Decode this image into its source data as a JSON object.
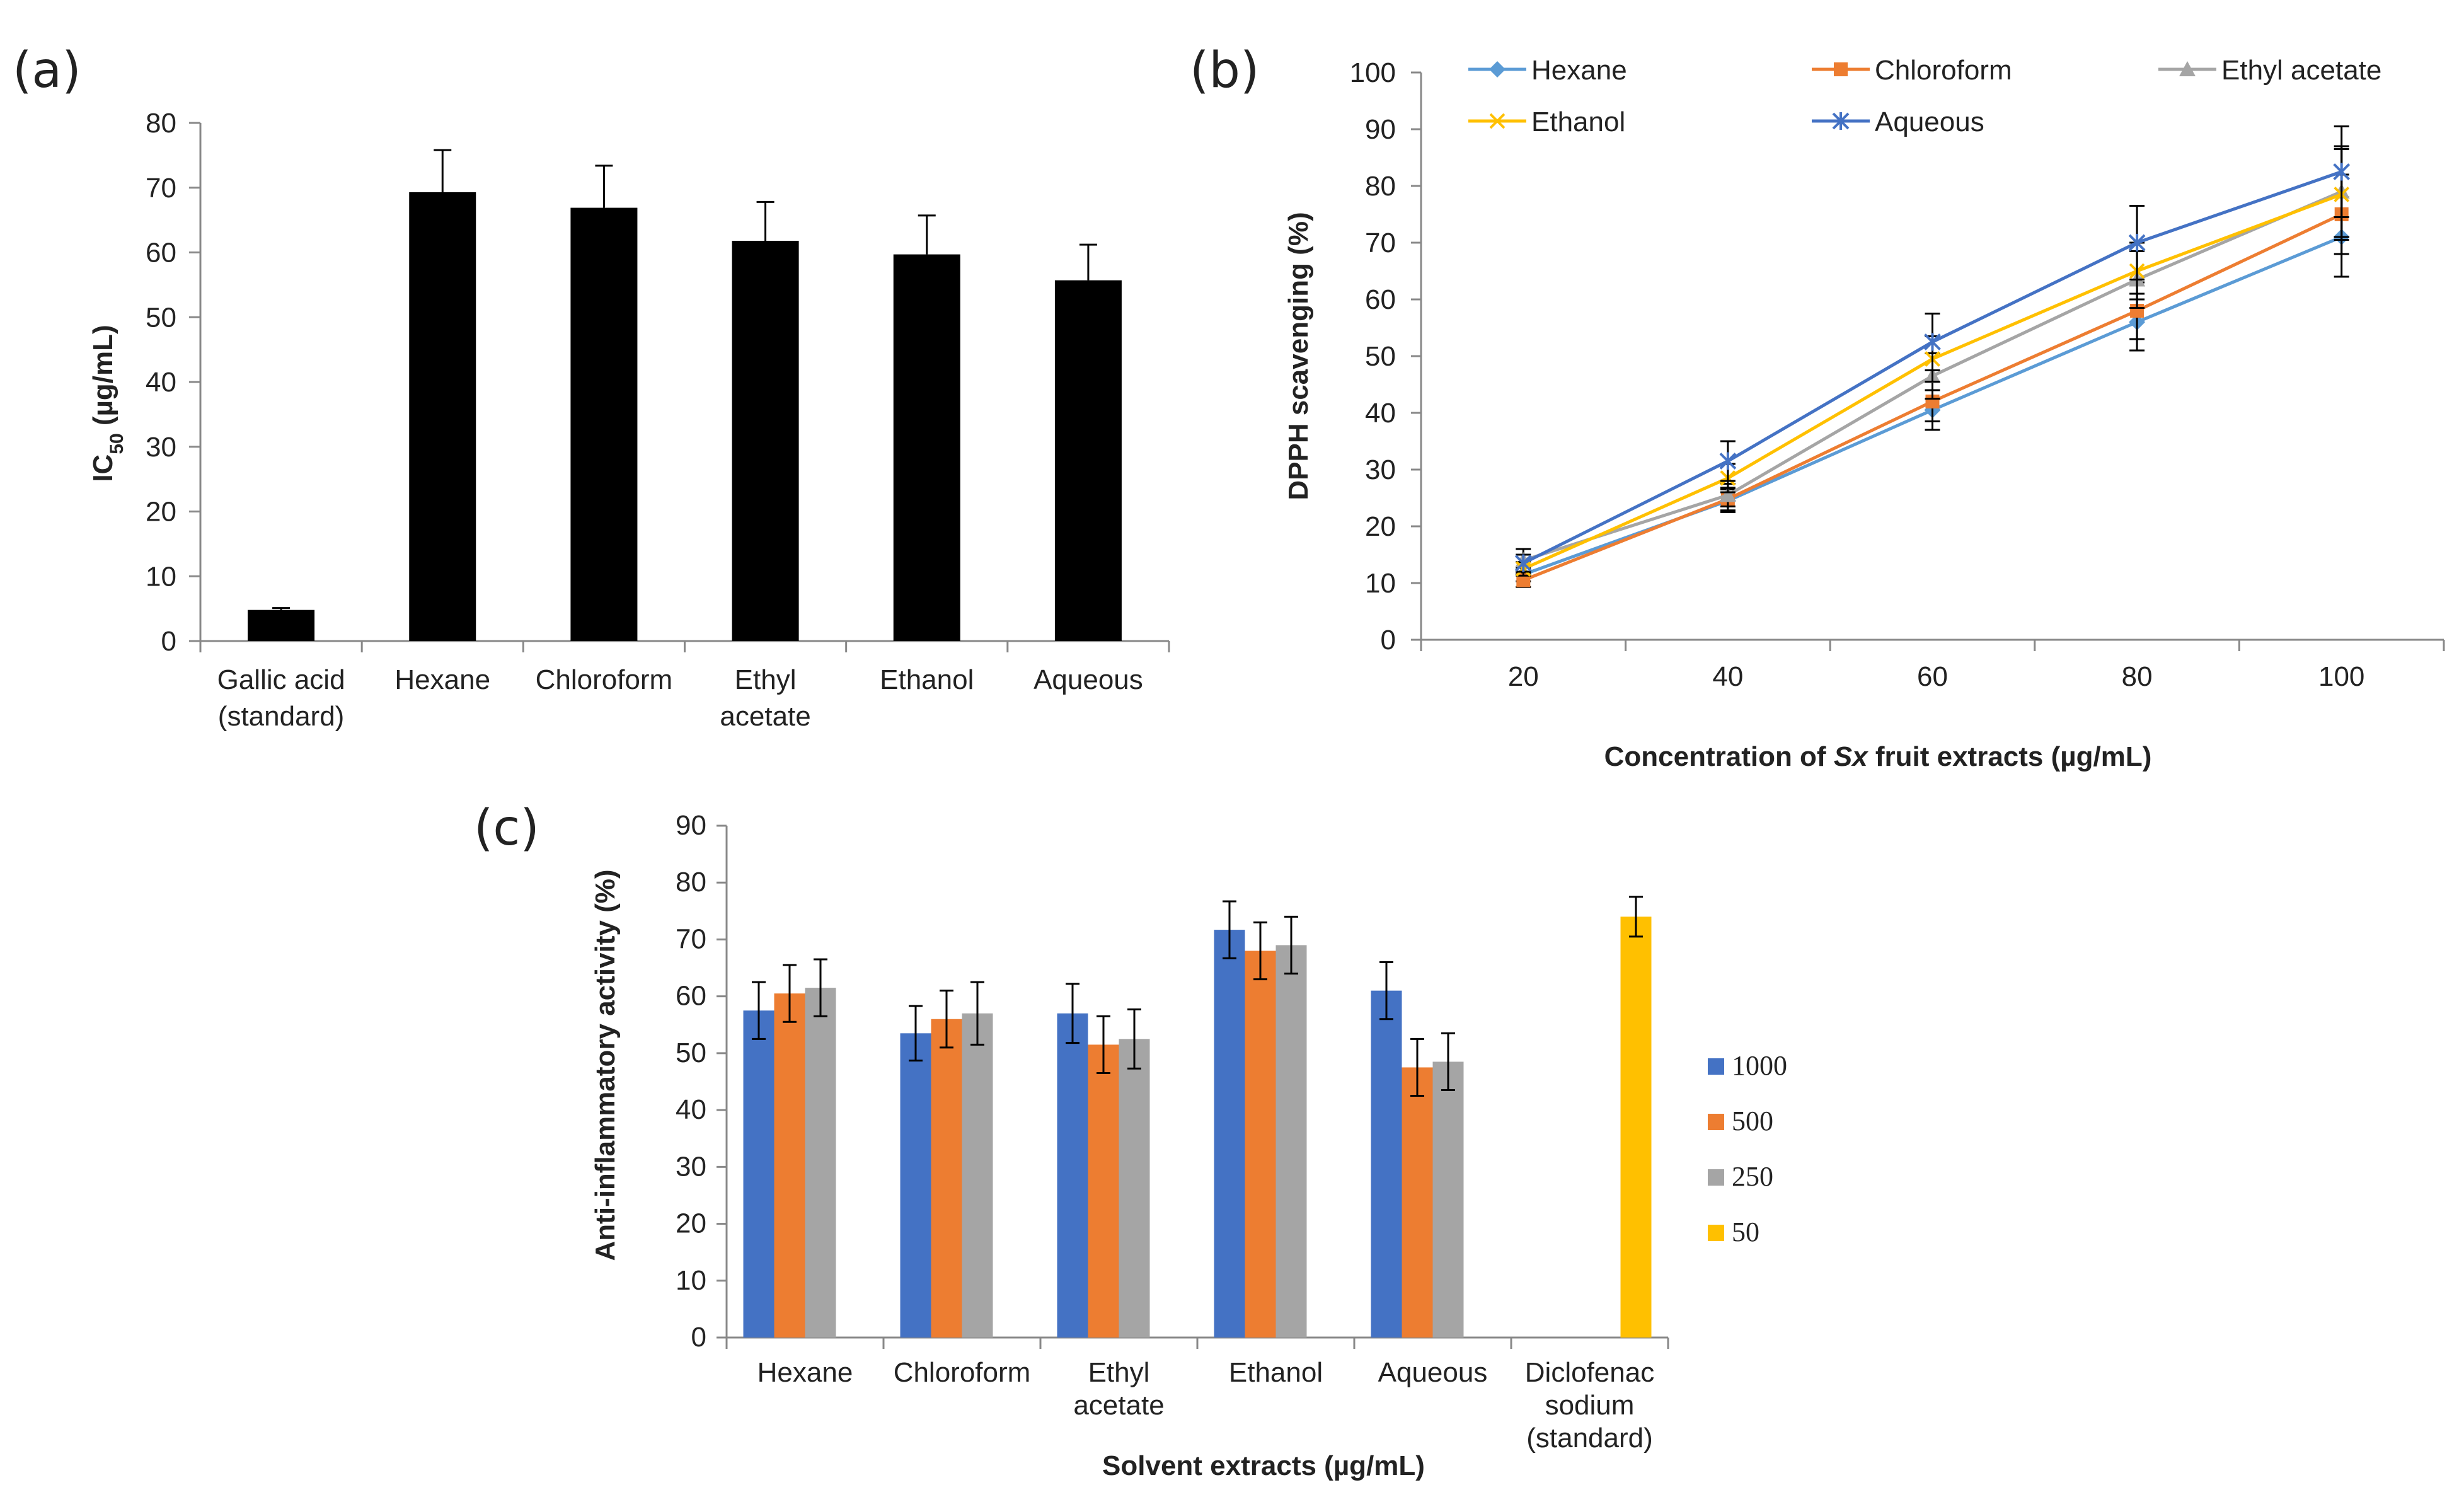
{
  "chart_data": [
    {
      "panel": "(a)",
      "type": "bar",
      "categories": [
        [
          "Gallic acid",
          "(standard)"
        ],
        [
          "Hexane"
        ],
        [
          "Chloroform"
        ],
        [
          "Ethyl",
          "acetate"
        ],
        [
          "Ethanol"
        ],
        [
          "Aqueous"
        ]
      ],
      "values": [
        4.8,
        69.3,
        66.9,
        61.8,
        59.7,
        55.7
      ],
      "errors": [
        0.3,
        6.5,
        6.5,
        6.0,
        6.0,
        5.5
      ],
      "ylabel_main": "IC",
      "ylabel_sub": "50",
      "ylabel_rest": " (µg/mL)",
      "ylim": [
        0,
        80
      ],
      "yticks": [
        0,
        10,
        20,
        30,
        40,
        50,
        60,
        70,
        80
      ],
      "color": "#000000"
    },
    {
      "panel": "(b)",
      "type": "line",
      "x": [
        20,
        40,
        60,
        80,
        100
      ],
      "series": [
        {
          "name": "Hexane",
          "values": [
            11.5,
            24.5,
            40.5,
            56.0,
            71.0
          ],
          "errors": [
            1.2,
            2.0,
            3.5,
            5.0,
            7.0
          ],
          "color": "#5B9BD5",
          "marker": "diamond"
        },
        {
          "name": "Chloroform",
          "values": [
            10.5,
            24.8,
            42.0,
            58.0,
            75.0
          ],
          "errors": [
            1.2,
            2.0,
            3.5,
            5.0,
            7.0
          ],
          "color": "#ED7D31",
          "marker": "square"
        },
        {
          "name": "Ethyl acetate",
          "values": [
            14.0,
            25.5,
            46.5,
            63.5,
            79.0
          ],
          "errors": [
            2.0,
            2.0,
            4.0,
            5.0,
            8.0
          ],
          "color": "#A5A5A5",
          "marker": "triangle"
        },
        {
          "name": "Ethanol",
          "values": [
            12.5,
            28.5,
            49.5,
            65.0,
            78.5
          ],
          "errors": [
            1.2,
            2.5,
            4.0,
            5.0,
            8.0
          ],
          "color": "#FFC000",
          "marker": "x"
        },
        {
          "name": "Aqueous",
          "values": [
            13.5,
            31.5,
            52.5,
            70.0,
            82.5
          ],
          "errors": [
            1.5,
            3.5,
            5.0,
            6.5,
            8.0
          ],
          "color": "#4472C4",
          "marker": "star"
        }
      ],
      "ylabel": "DPPH scavenging (%)",
      "xlabel_pre": "Concentration of ",
      "xlabel_ital": "Sx",
      "xlabel_post": " fruit extracts (µg/mL)",
      "ylim": [
        0,
        100
      ],
      "yticks": [
        0,
        10,
        20,
        30,
        40,
        50,
        60,
        70,
        80,
        90,
        100
      ],
      "xticks": [
        20,
        40,
        60,
        80,
        100
      ]
    },
    {
      "panel": "(c)",
      "type": "bar",
      "categories": [
        [
          "Hexane"
        ],
        [
          "Chloroform"
        ],
        [
          "Ethyl",
          "acetate"
        ],
        [
          "Ethanol"
        ],
        [
          "Aqueous"
        ],
        [
          "Diclofenac",
          "sodium",
          "(standard)"
        ]
      ],
      "series": [
        {
          "name": "1000",
          "values": [
            57.5,
            53.5,
            57.0,
            71.7,
            61.0,
            null
          ],
          "errors": [
            5.0,
            4.8,
            5.2,
            5.0,
            5.0,
            null
          ],
          "color": "#4472C4"
        },
        {
          "name": "500",
          "values": [
            60.5,
            56.0,
            51.5,
            68.0,
            47.5,
            null
          ],
          "errors": [
            5.0,
            5.0,
            5.0,
            5.0,
            5.0,
            null
          ],
          "color": "#ED7D31"
        },
        {
          "name": "250",
          "values": [
            61.5,
            57.0,
            52.5,
            69.0,
            48.5,
            null
          ],
          "errors": [
            5.0,
            5.5,
            5.2,
            5.0,
            5.0,
            null
          ],
          "color": "#A5A5A5"
        },
        {
          "name": "50",
          "values": [
            null,
            null,
            null,
            null,
            null,
            74.0
          ],
          "errors": [
            null,
            null,
            null,
            null,
            null,
            3.5
          ],
          "color": "#FFC000"
        }
      ],
      "ylabel": "Anti-inflammatory activity (%)",
      "xlabel": "Solvent extracts (µg/mL)",
      "ylim": [
        0,
        90
      ],
      "yticks": [
        0,
        10,
        20,
        30,
        40,
        50,
        60,
        70,
        80,
        90
      ]
    }
  ]
}
